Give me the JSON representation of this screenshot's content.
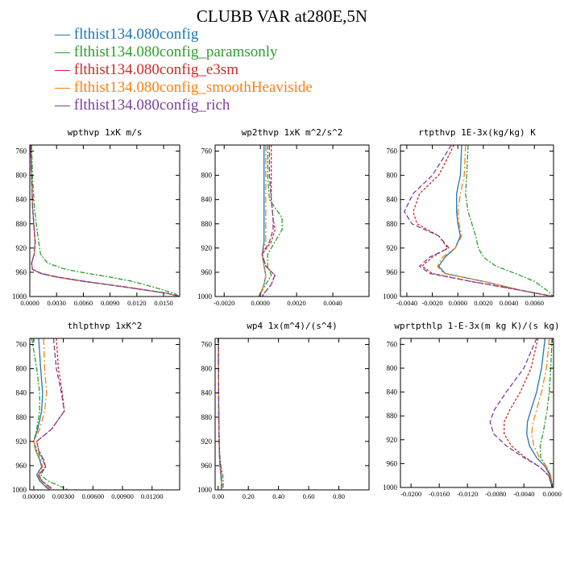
{
  "title": "CLUBB VAR at280E,5N",
  "legend": [
    {
      "label": "— flthist134.080config",
      "color": "#1f77b4"
    },
    {
      "label": "— flthist134.080config_paramsonly",
      "color": "#2ca02c"
    },
    {
      "label": "— flthist134.080config_e3sm",
      "color": "#d62728"
    },
    {
      "label": "— flthist134.080config_smoothHeaviside",
      "color": "#ff7f0e"
    },
    {
      "label": "— flthist134.080config_rich",
      "color": "#7b3f9e"
    }
  ],
  "chart_data": [
    {
      "type": "line",
      "title": "wpthvp  1xK m/s",
      "y_ticks": [
        "760",
        "800",
        "840",
        "880",
        "920",
        "960",
        "1000"
      ],
      "ylim": [
        1000,
        750
      ],
      "xlim": [
        0,
        0.0168
      ],
      "x_ticks": [
        "0.0000",
        "0.0030",
        "0.0060",
        "0.0090",
        "0.0120",
        "0.0150"
      ],
      "x_tick_values": [
        0,
        0.003,
        0.006,
        0.009,
        0.012,
        0.015
      ],
      "y": [
        750,
        800,
        850,
        890,
        910,
        930,
        945,
        955,
        962,
        968,
        975,
        985,
        995,
        1000
      ],
      "series": [
        {
          "name": "flthist134.080config",
          "color": "#1f77b4",
          "dash": "",
          "values": [
            0.0001,
            0.0002,
            0.0003,
            0.0005,
            0.0006,
            0.0005,
            0.0002,
            0.0003,
            0.0012,
            0.003,
            0.006,
            0.011,
            0.0155,
            0.0168
          ]
        },
        {
          "name": "flthist134.080config_paramsonly",
          "color": "#2ca02c",
          "dash": "6,2,2,2",
          "values": [
            0.0002,
            0.0003,
            0.0005,
            0.0008,
            0.001,
            0.0012,
            0.002,
            0.004,
            0.0065,
            0.009,
            0.0115,
            0.014,
            0.0162,
            0.0168
          ]
        },
        {
          "name": "flthist134.080config_e3sm",
          "color": "#d62728",
          "dash": "3,2",
          "values": [
            0.0001,
            0.0002,
            0.0003,
            0.0005,
            0.0006,
            0.0005,
            0.0002,
            0.0003,
            0.0013,
            0.0032,
            0.0062,
            0.011,
            0.0155,
            0.0168
          ]
        },
        {
          "name": "flthist134.080config_smoothHeaviside",
          "color": "#ff7f0e",
          "dash": "8,3,2,3",
          "values": [
            0.0001,
            0.0002,
            0.0003,
            0.0005,
            0.0006,
            0.0005,
            0.0002,
            0.0003,
            0.0012,
            0.003,
            0.006,
            0.011,
            0.0155,
            0.0168
          ]
        },
        {
          "name": "flthist134.080config_rich",
          "color": "#7b3f9e",
          "dash": "6,3",
          "values": [
            0.0001,
            0.0002,
            0.0003,
            0.0005,
            0.0006,
            0.0005,
            0.0002,
            0.0003,
            0.0013,
            0.0031,
            0.0061,
            0.011,
            0.0155,
            0.0168
          ]
        }
      ]
    },
    {
      "type": "line",
      "title": "wp2thvp  1xK m^2/s^2",
      "y_ticks": [
        "760",
        "800",
        "840",
        "880",
        "920",
        "960",
        "1000"
      ],
      "ylim": [
        1000,
        750
      ],
      "xlim": [
        -0.0025,
        0.006
      ],
      "x_ticks": [
        "-0.0020",
        "0.0000",
        "0.0020",
        "0.0040"
      ],
      "x_tick_values": [
        -0.002,
        0,
        0.002,
        0.004
      ],
      "y": [
        750,
        800,
        840,
        870,
        890,
        910,
        930,
        950,
        965,
        980,
        995,
        1000
      ],
      "series": [
        {
          "name": "flthist134.080config",
          "color": "#1f77b4",
          "dash": "",
          "values": [
            0.0002,
            0.0002,
            0.0002,
            0.0002,
            0.0002,
            0.0002,
            0.0001,
            0.0002,
            0.0003,
            0.0002,
            0.0,
            -0.0001
          ]
        },
        {
          "name": "flthist134.080config_paramsonly",
          "color": "#2ca02c",
          "dash": "6,2,2,2",
          "values": [
            0.0004,
            0.0004,
            0.0005,
            0.0012,
            0.0012,
            0.0008,
            0.0004,
            0.0004,
            0.0006,
            0.0003,
            0.0,
            -0.0001
          ]
        },
        {
          "name": "flthist134.080config_e3sm",
          "color": "#d62728",
          "dash": "3,2",
          "values": [
            0.0006,
            0.0006,
            0.0006,
            0.0007,
            0.0008,
            0.0006,
            0.0001,
            0.0003,
            0.0008,
            0.0006,
            0.0002,
            0.0001
          ]
        },
        {
          "name": "flthist134.080config_smoothHeaviside",
          "color": "#ff7f0e",
          "dash": "8,3,2,3",
          "values": [
            0.0003,
            0.0003,
            0.0003,
            0.0003,
            0.0003,
            0.0003,
            0.0001,
            0.0002,
            0.0003,
            0.0002,
            0.0,
            -0.0001
          ]
        },
        {
          "name": "flthist134.080config_rich",
          "color": "#7b3f9e",
          "dash": "6,3",
          "values": [
            0.0005,
            0.0005,
            0.0006,
            0.0007,
            0.0007,
            0.0005,
            0.0001,
            0.0003,
            0.0008,
            0.0006,
            0.0002,
            0.0001
          ]
        }
      ]
    },
    {
      "type": "line",
      "title": "rtpthvp   1E-3x(kg/kg) K",
      "y_ticks": [
        "760",
        "800",
        "840",
        "880",
        "920",
        "960",
        "1000"
      ],
      "ylim": [
        1000,
        750
      ],
      "xlim": [
        -0.0045,
        0.0075
      ],
      "x_ticks": [
        "-0.0040",
        "-0.0020",
        "0.0000",
        "0.0020",
        "0.0040",
        "0.0060"
      ],
      "x_tick_values": [
        -0.004,
        -0.002,
        0,
        0.002,
        0.004,
        0.006
      ],
      "y": [
        750,
        800,
        830,
        860,
        880,
        900,
        920,
        935,
        950,
        962,
        975,
        990,
        1000
      ],
      "series": [
        {
          "name": "flthist134.080config",
          "color": "#1f77b4",
          "dash": "",
          "values": [
            0.0003,
            0.0002,
            -0.0001,
            -0.0001,
            0.0,
            0.0002,
            -0.0002,
            -0.001,
            -0.0015,
            -0.001,
            0.002,
            0.005,
            0.0075
          ]
        },
        {
          "name": "flthist134.080config_paramsonly",
          "color": "#2ca02c",
          "dash": "6,2,2,2",
          "values": [
            0.0008,
            0.0007,
            0.0006,
            0.0008,
            0.0011,
            0.0014,
            0.0016,
            0.002,
            0.003,
            0.0045,
            0.006,
            0.007,
            0.0075
          ]
        },
        {
          "name": "flthist134.080config_e3sm",
          "color": "#d62728",
          "dash": "3,2",
          "values": [
            -0.0003,
            -0.0015,
            -0.003,
            -0.0035,
            -0.0032,
            -0.0015,
            -0.0008,
            -0.002,
            -0.0028,
            -0.002,
            0.001,
            0.005,
            0.0075
          ]
        },
        {
          "name": "flthist134.080config_smoothHeaviside",
          "color": "#ff7f0e",
          "dash": "8,3,2,3",
          "values": [
            0.0006,
            0.0005,
            0.0002,
            0.0,
            0.0001,
            0.0003,
            -0.0002,
            -0.0012,
            -0.0016,
            -0.0011,
            0.002,
            0.005,
            0.0075
          ]
        },
        {
          "name": "flthist134.080config_rich",
          "color": "#7b3f9e",
          "dash": "6,3",
          "values": [
            -0.0005,
            -0.002,
            -0.0035,
            -0.0042,
            -0.0036,
            -0.0015,
            -0.0007,
            -0.0022,
            -0.003,
            -0.0022,
            0.001,
            0.005,
            0.0075
          ]
        }
      ]
    },
    {
      "type": "line",
      "title": "thlpthvp   1xK^2",
      "y_ticks": [
        "760",
        "800",
        "840",
        "880",
        "920",
        "960",
        "1000"
      ],
      "ylim": [
        1000,
        750
      ],
      "xlim": [
        -0.0004,
        0.0148
      ],
      "x_ticks": [
        "0.00000",
        "0.00300",
        "0.00600",
        "0.00900",
        "0.01200"
      ],
      "x_tick_values": [
        0,
        0.003,
        0.006,
        0.009,
        0.012
      ],
      "y": [
        750,
        800,
        840,
        870,
        900,
        920,
        935,
        950,
        962,
        975,
        985,
        995,
        1000
      ],
      "series": [
        {
          "name": "flthist134.080config",
          "color": "#1f77b4",
          "dash": "",
          "values": [
            0.0005,
            0.0007,
            0.0009,
            0.0008,
            0.0004,
            0.0,
            0.0002,
            0.0006,
            0.0008,
            0.0003,
            0.0006,
            0.0012,
            0.0016
          ]
        },
        {
          "name": "flthist134.080config_paramsonly",
          "color": "#2ca02c",
          "dash": "6,2,2,2",
          "values": [
            -0.0002,
            0.0003,
            0.0006,
            0.0006,
            0.0003,
            0.0,
            0.0003,
            0.0009,
            0.0012,
            0.0007,
            0.0014,
            0.0028,
            0.0035
          ]
        },
        {
          "name": "flthist134.080config_e3sm",
          "color": "#d62728",
          "dash": "3,2",
          "values": [
            0.0023,
            0.0025,
            0.0029,
            0.0031,
            0.0018,
            0.0003,
            0.0005,
            0.001,
            0.0012,
            0.0005,
            0.0008,
            0.0016,
            0.002
          ]
        },
        {
          "name": "flthist134.080config_smoothHeaviside",
          "color": "#ff7f0e",
          "dash": "8,3,2,3",
          "values": [
            0.001,
            0.0011,
            0.0013,
            0.0011,
            0.0006,
            0.0,
            0.0002,
            0.0007,
            0.0009,
            0.0004,
            0.0007,
            0.0014,
            0.0018
          ]
        },
        {
          "name": "flthist134.080config_rich",
          "color": "#7b3f9e",
          "dash": "6,3",
          "values": [
            0.002,
            0.0023,
            0.0028,
            0.0031,
            0.0018,
            0.0003,
            0.0005,
            0.001,
            0.0012,
            0.0005,
            0.0008,
            0.0016,
            0.002
          ]
        }
      ]
    },
    {
      "type": "line",
      "title": "wp4   1x(m^4)/(s^4)",
      "y_ticks": [
        "760",
        "800",
        "840",
        "880",
        "920",
        "960",
        "1000"
      ],
      "ylim": [
        1000,
        750
      ],
      "xlim": [
        -0.02,
        1.0
      ],
      "x_ticks": [
        "0.00",
        "0.20",
        "0.40",
        "0.60",
        "0.80"
      ],
      "x_tick_values": [
        0,
        0.2,
        0.4,
        0.6,
        0.8
      ],
      "y": [
        750,
        800,
        850,
        900,
        940,
        960,
        975,
        990,
        1000
      ],
      "series": [
        {
          "name": "flthist134.080config",
          "color": "#1f77b4",
          "dash": "",
          "values": [
            0.002,
            0.002,
            0.003,
            0.005,
            0.008,
            0.012,
            0.018,
            0.022,
            0.02
          ]
        },
        {
          "name": "flthist134.080config_paramsonly",
          "color": "#2ca02c",
          "dash": "6,2,2,2",
          "values": [
            0.002,
            0.003,
            0.004,
            0.006,
            0.01,
            0.018,
            0.03,
            0.035,
            0.03
          ]
        },
        {
          "name": "flthist134.080config_e3sm",
          "color": "#d62728",
          "dash": "3,2",
          "values": [
            0.002,
            0.002,
            0.003,
            0.005,
            0.009,
            0.014,
            0.02,
            0.024,
            0.021
          ]
        },
        {
          "name": "flthist134.080config_smoothHeaviside",
          "color": "#ff7f0e",
          "dash": "8,3,2,3",
          "values": [
            0.002,
            0.002,
            0.003,
            0.005,
            0.008,
            0.012,
            0.018,
            0.022,
            0.02
          ]
        },
        {
          "name": "flthist134.080config_rich",
          "color": "#7b3f9e",
          "dash": "6,3",
          "values": [
            0.002,
            0.002,
            0.003,
            0.005,
            0.009,
            0.014,
            0.02,
            0.024,
            0.021
          ]
        }
      ]
    },
    {
      "type": "line",
      "title": "wprtpthlp   1-E-3x(m kg K)/(s kg)",
      "y_ticks": [
        "760",
        "800",
        "840",
        "880",
        "920",
        "960",
        "1000"
      ],
      "ylim": [
        1000,
        750
      ],
      "xlim": [
        -0.0215,
        0.0002
      ],
      "x_ticks": [
        "-0.0200",
        "-0.0160",
        "-0.0120",
        "-0.0080",
        "-0.0040",
        "0.0000"
      ],
      "x_tick_values": [
        -0.02,
        -0.016,
        -0.012,
        -0.008,
        -0.004,
        0
      ],
      "y": [
        750,
        800,
        840,
        870,
        890,
        910,
        930,
        950,
        965,
        980,
        995,
        1000
      ],
      "series": [
        {
          "name": "flthist134.080config",
          "color": "#1f77b4",
          "dash": "",
          "values": [
            -0.001,
            -0.0015,
            -0.0022,
            -0.003,
            -0.0035,
            -0.0036,
            -0.0032,
            -0.0022,
            -0.001,
            -0.0003,
            -0.0001,
            0.0
          ]
        },
        {
          "name": "flthist134.080config_paramsonly",
          "color": "#2ca02c",
          "dash": "6,2,2,2",
          "values": [
            0.0,
            -0.0002,
            -0.0004,
            -0.0007,
            -0.001,
            -0.0013,
            -0.0017,
            -0.0016,
            -0.0008,
            -0.0002,
            0.0,
            0.0
          ]
        },
        {
          "name": "flthist134.080config_e3sm",
          "color": "#d62728",
          "dash": "3,2",
          "values": [
            -0.002,
            -0.003,
            -0.0045,
            -0.006,
            -0.0068,
            -0.0068,
            -0.0058,
            -0.0038,
            -0.0018,
            -0.0005,
            -0.0001,
            0.0
          ]
        },
        {
          "name": "flthist134.080config_smoothHeaviside",
          "color": "#ff7f0e",
          "dash": "8,3,2,3",
          "values": [
            -0.0004,
            -0.0008,
            -0.0015,
            -0.0022,
            -0.0027,
            -0.0029,
            -0.0026,
            -0.0018,
            -0.0008,
            -0.0002,
            0.0,
            0.0
          ]
        },
        {
          "name": "flthist134.080config_rich",
          "color": "#7b3f9e",
          "dash": "6,3",
          "values": [
            -0.0022,
            -0.004,
            -0.0065,
            -0.0082,
            -0.0088,
            -0.0083,
            -0.0065,
            -0.004,
            -0.0018,
            -0.0005,
            -0.0001,
            0.0
          ]
        }
      ]
    }
  ]
}
